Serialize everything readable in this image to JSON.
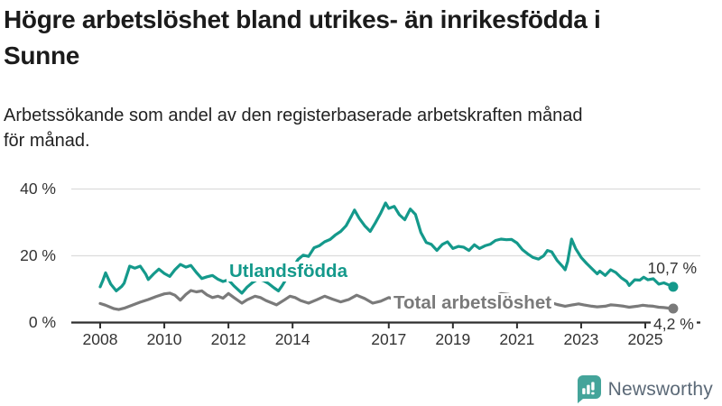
{
  "header": {
    "title_lines": [
      "Högre arbetslöshet bland utrikes- än inrikesfödda i",
      "Sunne"
    ],
    "subtitle_lines": [
      "Arbetssökande som andel av den registerbaserade arbetskraften månad",
      "för månad."
    ]
  },
  "footer": {
    "brand": "Newsworthy",
    "brand_color": "#44a49a",
    "text_color": "#5b6977"
  },
  "colors": {
    "teal": "#14998b",
    "gray": "#7a7a7a",
    "axis": "#2e2e2e",
    "grid": "#dcdcdc"
  },
  "chart_data": {
    "type": "line",
    "title": "Högre arbetslöshet bland utrikes- än inrikesfödda i Sunne",
    "subtitle": "Arbetssökande som andel av den registerbaserade arbetskraften månad för månad.",
    "unit": "%",
    "ylim": [
      0,
      40
    ],
    "x_range": [
      2008,
      2025.9
    ],
    "grid": "horizontal",
    "legend_position": "inline-labels",
    "y_ticks": [
      {
        "value": 0,
        "label": "0 %"
      },
      {
        "value": 20,
        "label": "20 %"
      },
      {
        "value": 40,
        "label": "40 %"
      }
    ],
    "x_ticks": [
      {
        "year": 2008,
        "label": "2008"
      },
      {
        "year": 2010,
        "label": "2010"
      },
      {
        "year": 2012,
        "label": "2012"
      },
      {
        "year": 2014,
        "label": "2014"
      },
      {
        "year": 2017,
        "label": "2017"
      },
      {
        "year": 2019,
        "label": "2019"
      },
      {
        "year": 2021,
        "label": "2021"
      },
      {
        "year": 2023,
        "label": "2023"
      },
      {
        "year": 2025,
        "label": "2025"
      }
    ],
    "series": [
      {
        "name": "Utlandsfödda",
        "color": "#14998b",
        "end_label": "10,7 %",
        "end_value": 10.7,
        "points": [
          [
            2008.0,
            10.7
          ],
          [
            2008.08,
            12.5
          ],
          [
            2008.17,
            14.9
          ],
          [
            2008.33,
            11.5
          ],
          [
            2008.5,
            9.5
          ],
          [
            2008.67,
            10.8
          ],
          [
            2008.75,
            11.8
          ],
          [
            2008.92,
            16.9
          ],
          [
            2009.08,
            16.3
          ],
          [
            2009.25,
            16.9
          ],
          [
            2009.42,
            14.5
          ],
          [
            2009.5,
            12.9
          ],
          [
            2009.67,
            14.6
          ],
          [
            2009.83,
            16.0
          ],
          [
            2010.0,
            14.7
          ],
          [
            2010.17,
            13.8
          ],
          [
            2010.33,
            15.8
          ],
          [
            2010.5,
            17.4
          ],
          [
            2010.67,
            16.6
          ],
          [
            2010.83,
            17.1
          ],
          [
            2011.0,
            15.0
          ],
          [
            2011.17,
            13.2
          ],
          [
            2011.33,
            13.7
          ],
          [
            2011.5,
            14.1
          ],
          [
            2011.67,
            13.0
          ],
          [
            2011.83,
            12.3
          ],
          [
            2012.0,
            12.8
          ],
          [
            2012.17,
            11.0
          ],
          [
            2012.42,
            8.8
          ],
          [
            2012.58,
            10.6
          ],
          [
            2012.75,
            12.0
          ],
          [
            2012.92,
            13.0
          ],
          [
            2013.08,
            12.6
          ],
          [
            2013.25,
            11.7
          ],
          [
            2013.42,
            10.4
          ],
          [
            2013.56,
            9.5
          ],
          [
            2013.67,
            11.0
          ],
          [
            2013.83,
            13.5
          ],
          [
            2014.0,
            16.3
          ],
          [
            2014.17,
            18.9
          ],
          [
            2014.33,
            20.2
          ],
          [
            2014.5,
            19.8
          ],
          [
            2014.67,
            22.4
          ],
          [
            2014.83,
            23.0
          ],
          [
            2015.0,
            24.2
          ],
          [
            2015.17,
            24.9
          ],
          [
            2015.33,
            26.2
          ],
          [
            2015.5,
            27.3
          ],
          [
            2015.67,
            29.0
          ],
          [
            2015.83,
            31.8
          ],
          [
            2015.93,
            33.7
          ],
          [
            2016.08,
            31.2
          ],
          [
            2016.25,
            29.0
          ],
          [
            2016.42,
            27.3
          ],
          [
            2016.58,
            29.8
          ],
          [
            2016.75,
            32.8
          ],
          [
            2016.9,
            35.8
          ],
          [
            2017.0,
            34.2
          ],
          [
            2017.17,
            34.8
          ],
          [
            2017.33,
            32.3
          ],
          [
            2017.5,
            30.8
          ],
          [
            2017.67,
            34.0
          ],
          [
            2017.83,
            32.4
          ],
          [
            2018.0,
            27.0
          ],
          [
            2018.17,
            24.0
          ],
          [
            2018.33,
            23.4
          ],
          [
            2018.5,
            21.6
          ],
          [
            2018.67,
            23.4
          ],
          [
            2018.83,
            24.2
          ],
          [
            2019.0,
            22.2
          ],
          [
            2019.17,
            22.8
          ],
          [
            2019.33,
            22.6
          ],
          [
            2019.5,
            21.6
          ],
          [
            2019.67,
            23.3
          ],
          [
            2019.83,
            22.2
          ],
          [
            2020.0,
            23.0
          ],
          [
            2020.17,
            23.5
          ],
          [
            2020.33,
            24.6
          ],
          [
            2020.5,
            25.0
          ],
          [
            2020.67,
            24.8
          ],
          [
            2020.83,
            24.9
          ],
          [
            2021.0,
            23.8
          ],
          [
            2021.17,
            21.8
          ],
          [
            2021.33,
            20.6
          ],
          [
            2021.5,
            19.5
          ],
          [
            2021.67,
            19.0
          ],
          [
            2021.83,
            20.0
          ],
          [
            2021.95,
            21.6
          ],
          [
            2022.08,
            21.2
          ],
          [
            2022.25,
            18.6
          ],
          [
            2022.42,
            16.8
          ],
          [
            2022.5,
            15.8
          ],
          [
            2022.58,
            18.3
          ],
          [
            2022.7,
            25.0
          ],
          [
            2022.83,
            22.1
          ],
          [
            2023.0,
            19.5
          ],
          [
            2023.17,
            17.7
          ],
          [
            2023.33,
            16.2
          ],
          [
            2023.5,
            14.6
          ],
          [
            2023.58,
            15.4
          ],
          [
            2023.75,
            14.1
          ],
          [
            2023.92,
            15.8
          ],
          [
            2024.08,
            15.0
          ],
          [
            2024.25,
            13.4
          ],
          [
            2024.42,
            12.3
          ],
          [
            2024.5,
            11.1
          ],
          [
            2024.67,
            12.8
          ],
          [
            2024.83,
            12.7
          ],
          [
            2024.95,
            13.6
          ],
          [
            2025.08,
            12.8
          ],
          [
            2025.25,
            13.1
          ],
          [
            2025.42,
            11.5
          ],
          [
            2025.58,
            11.9
          ],
          [
            2025.7,
            11.4
          ],
          [
            2025.87,
            10.7
          ]
        ]
      },
      {
        "name": "Total arbetslöshet",
        "color": "#7a7a7a",
        "end_label": "4,2 %",
        "end_value": 4.2,
        "points": [
          [
            2008.0,
            5.7
          ],
          [
            2008.17,
            5.2
          ],
          [
            2008.42,
            4.2
          ],
          [
            2008.58,
            3.9
          ],
          [
            2008.75,
            4.3
          ],
          [
            2009.0,
            5.2
          ],
          [
            2009.25,
            6.1
          ],
          [
            2009.5,
            6.9
          ],
          [
            2009.75,
            7.8
          ],
          [
            2010.0,
            8.6
          ],
          [
            2010.17,
            8.8
          ],
          [
            2010.33,
            8.2
          ],
          [
            2010.5,
            6.7
          ],
          [
            2010.67,
            8.4
          ],
          [
            2010.83,
            9.6
          ],
          [
            2011.0,
            9.2
          ],
          [
            2011.17,
            9.5
          ],
          [
            2011.33,
            8.3
          ],
          [
            2011.5,
            7.5
          ],
          [
            2011.67,
            7.9
          ],
          [
            2011.83,
            7.3
          ],
          [
            2012.0,
            8.7
          ],
          [
            2012.17,
            7.5
          ],
          [
            2012.42,
            5.8
          ],
          [
            2012.58,
            6.8
          ],
          [
            2012.83,
            7.9
          ],
          [
            2013.0,
            7.5
          ],
          [
            2013.17,
            6.6
          ],
          [
            2013.5,
            5.3
          ],
          [
            2013.75,
            6.8
          ],
          [
            2013.92,
            7.9
          ],
          [
            2014.08,
            7.5
          ],
          [
            2014.25,
            6.6
          ],
          [
            2014.5,
            5.8
          ],
          [
            2014.75,
            6.8
          ],
          [
            2015.0,
            7.9
          ],
          [
            2015.25,
            7.0
          ],
          [
            2015.5,
            6.2
          ],
          [
            2015.75,
            6.9
          ],
          [
            2016.0,
            8.2
          ],
          [
            2016.25,
            7.2
          ],
          [
            2016.5,
            5.8
          ],
          [
            2016.75,
            6.4
          ],
          [
            2017.0,
            7.5
          ],
          [
            2017.33,
            6.4
          ],
          [
            2017.58,
            5.6
          ],
          [
            2017.83,
            6.2
          ],
          [
            2018.0,
            7.0
          ],
          [
            2018.33,
            5.9
          ],
          [
            2018.58,
            5.1
          ],
          [
            2018.83,
            5.8
          ],
          [
            2019.0,
            6.3
          ],
          [
            2019.33,
            5.4
          ],
          [
            2019.58,
            4.9
          ],
          [
            2019.83,
            5.6
          ],
          [
            2020.0,
            6.1
          ],
          [
            2020.25,
            7.6
          ],
          [
            2020.5,
            8.7
          ],
          [
            2020.75,
            8.4
          ],
          [
            2021.0,
            8.0
          ],
          [
            2021.25,
            7.2
          ],
          [
            2021.5,
            6.4
          ],
          [
            2021.75,
            6.0
          ],
          [
            2022.0,
            6.2
          ],
          [
            2022.25,
            5.4
          ],
          [
            2022.5,
            4.9
          ],
          [
            2022.67,
            5.2
          ],
          [
            2022.92,
            5.6
          ],
          [
            2023.08,
            5.3
          ],
          [
            2023.33,
            4.9
          ],
          [
            2023.5,
            4.7
          ],
          [
            2023.75,
            4.9
          ],
          [
            2023.92,
            5.3
          ],
          [
            2024.08,
            5.2
          ],
          [
            2024.33,
            4.9
          ],
          [
            2024.5,
            4.6
          ],
          [
            2024.75,
            4.9
          ],
          [
            2024.92,
            5.2
          ],
          [
            2025.08,
            5.0
          ],
          [
            2025.25,
            4.9
          ],
          [
            2025.42,
            4.6
          ],
          [
            2025.58,
            4.5
          ],
          [
            2025.75,
            4.3
          ],
          [
            2025.87,
            4.2
          ]
        ]
      }
    ]
  }
}
